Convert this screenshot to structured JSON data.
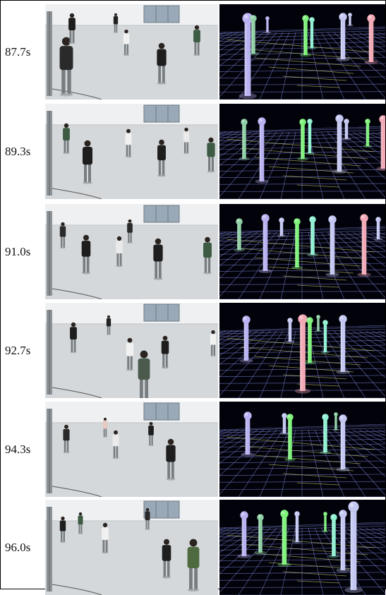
{
  "frames": [
    {
      "time": "87.7s"
    },
    {
      "time": "89.3s"
    },
    {
      "time": "91.0s"
    },
    {
      "time": "92.7s"
    },
    {
      "time": "94.3s"
    },
    {
      "time": "96.0s"
    }
  ],
  "colors": {
    "pillars": [
      "#b9b2f2",
      "#8fd0a5",
      "#7ef27a",
      "#8ff0d2",
      "#c3c7f2",
      "#f2a9b6"
    ],
    "grid": "#7d86d8",
    "grid_highlight": "#e4ef7a",
    "render_bg": "#02020a",
    "floor": "#d9dcde",
    "wall": "#eef0f1"
  }
}
